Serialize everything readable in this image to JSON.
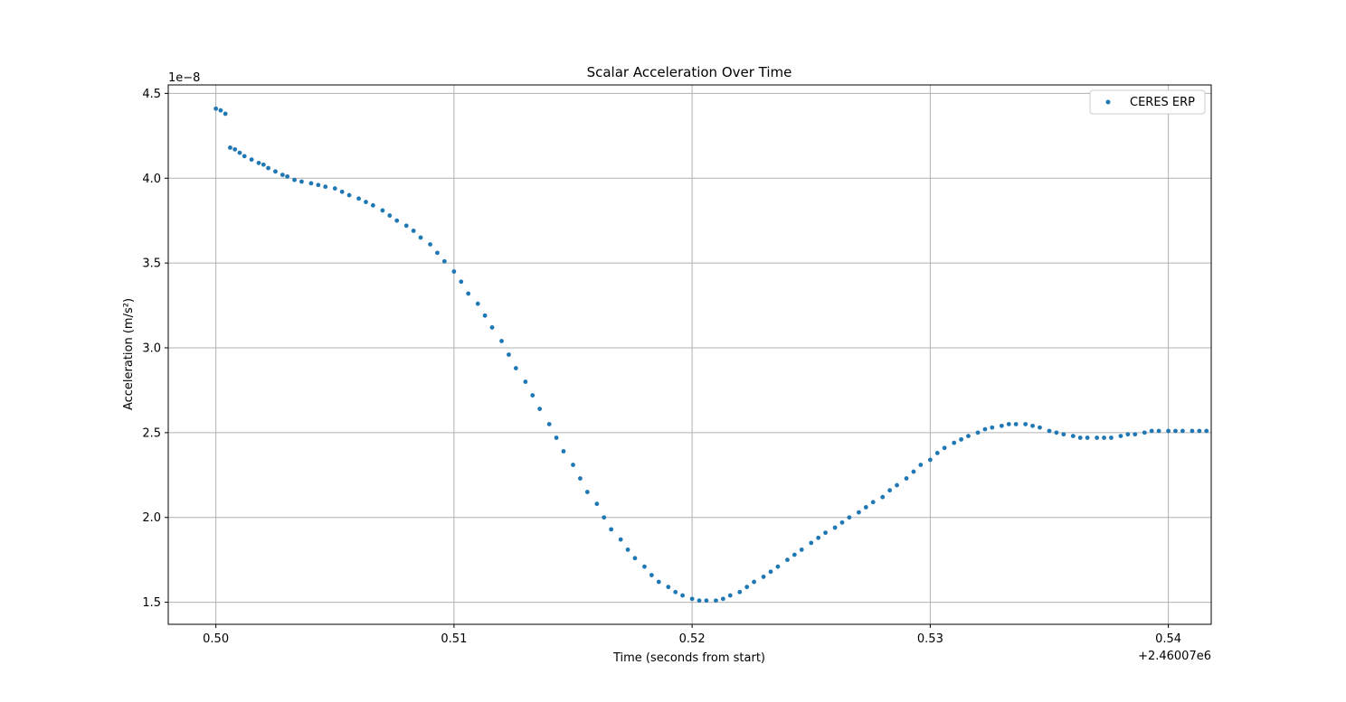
{
  "chart_data": {
    "type": "scatter",
    "title": "Scalar Acceleration Over Time",
    "xlabel": "Time (seconds from start)",
    "ylabel": "Acceleration (m/s²)",
    "x_offset_label": "+2.46007e6",
    "y_scale_label": "1e−8",
    "xlim": [
      0.498,
      0.5418
    ],
    "ylim": [
      1.37,
      4.55
    ],
    "x_ticks": [
      0.5,
      0.51,
      0.52,
      0.53,
      0.54
    ],
    "x_tick_labels": [
      "0.50",
      "0.51",
      "0.52",
      "0.53",
      "0.54"
    ],
    "y_ticks": [
      1.5,
      2.0,
      2.5,
      3.0,
      3.5,
      4.0,
      4.5
    ],
    "y_tick_labels": [
      "1.5",
      "2.0",
      "2.5",
      "3.0",
      "3.5",
      "4.0",
      "4.5"
    ],
    "grid": true,
    "legend_position": "top-right",
    "marker_color": "#1f77b4",
    "series": [
      {
        "name": "CERES ERP",
        "x": [
          0.5,
          0.5002,
          0.5004,
          0.5006,
          0.5008,
          0.501,
          0.5012,
          0.5015,
          0.5018,
          0.502,
          0.5022,
          0.5025,
          0.5028,
          0.503,
          0.5033,
          0.5036,
          0.504,
          0.5043,
          0.5046,
          0.505,
          0.5053,
          0.5056,
          0.506,
          0.5063,
          0.5066,
          0.507,
          0.5073,
          0.5076,
          0.508,
          0.5083,
          0.5086,
          0.509,
          0.5093,
          0.5096,
          0.51,
          0.5103,
          0.5106,
          0.511,
          0.5113,
          0.5116,
          0.512,
          0.5123,
          0.5126,
          0.513,
          0.5133,
          0.5136,
          0.514,
          0.5143,
          0.5146,
          0.515,
          0.5153,
          0.5156,
          0.516,
          0.5163,
          0.5166,
          0.517,
          0.5173,
          0.5176,
          0.518,
          0.5183,
          0.5186,
          0.519,
          0.5193,
          0.5196,
          0.52,
          0.5203,
          0.5206,
          0.521,
          0.5213,
          0.5216,
          0.522,
          0.5223,
          0.5226,
          0.523,
          0.5233,
          0.5236,
          0.524,
          0.5243,
          0.5246,
          0.525,
          0.5253,
          0.5256,
          0.526,
          0.5263,
          0.5266,
          0.527,
          0.5273,
          0.5276,
          0.528,
          0.5283,
          0.5286,
          0.529,
          0.5293,
          0.5296,
          0.53,
          0.5303,
          0.5306,
          0.531,
          0.5313,
          0.5316,
          0.532,
          0.5323,
          0.5326,
          0.533,
          0.5333,
          0.5336,
          0.534,
          0.5343,
          0.5346,
          0.535,
          0.5353,
          0.5356,
          0.536,
          0.5363,
          0.5366,
          0.537,
          0.5373,
          0.5376,
          0.538,
          0.5383,
          0.5386,
          0.539,
          0.5393,
          0.5396,
          0.54,
          0.5403,
          0.5406,
          0.541,
          0.5413,
          0.5416
        ],
        "y": [
          4.41,
          4.4,
          4.38,
          4.18,
          4.17,
          4.15,
          4.13,
          4.11,
          4.09,
          4.08,
          4.06,
          4.04,
          4.02,
          4.01,
          3.99,
          3.98,
          3.97,
          3.96,
          3.95,
          3.94,
          3.92,
          3.9,
          3.88,
          3.86,
          3.84,
          3.81,
          3.78,
          3.75,
          3.72,
          3.69,
          3.65,
          3.61,
          3.56,
          3.51,
          3.45,
          3.39,
          3.32,
          3.26,
          3.19,
          3.12,
          3.04,
          2.96,
          2.88,
          2.8,
          2.72,
          2.64,
          2.55,
          2.47,
          2.39,
          2.31,
          2.23,
          2.15,
          2.08,
          2.0,
          1.93,
          1.87,
          1.81,
          1.76,
          1.71,
          1.66,
          1.62,
          1.59,
          1.56,
          1.54,
          1.52,
          1.51,
          1.51,
          1.51,
          1.52,
          1.54,
          1.56,
          1.59,
          1.62,
          1.65,
          1.68,
          1.71,
          1.75,
          1.78,
          1.81,
          1.85,
          1.88,
          1.91,
          1.94,
          1.97,
          2.0,
          2.03,
          2.06,
          2.09,
          2.12,
          2.16,
          2.19,
          2.23,
          2.27,
          2.31,
          2.34,
          2.38,
          2.41,
          2.44,
          2.46,
          2.48,
          2.5,
          2.52,
          2.53,
          2.54,
          2.55,
          2.55,
          2.55,
          2.54,
          2.53,
          2.51,
          2.5,
          2.49,
          2.48,
          2.47,
          2.47,
          2.47,
          2.47,
          2.47,
          2.48,
          2.49,
          2.49,
          2.5,
          2.51,
          2.51,
          2.51,
          2.51,
          2.51,
          2.51,
          2.51,
          2.51
        ]
      }
    ]
  }
}
